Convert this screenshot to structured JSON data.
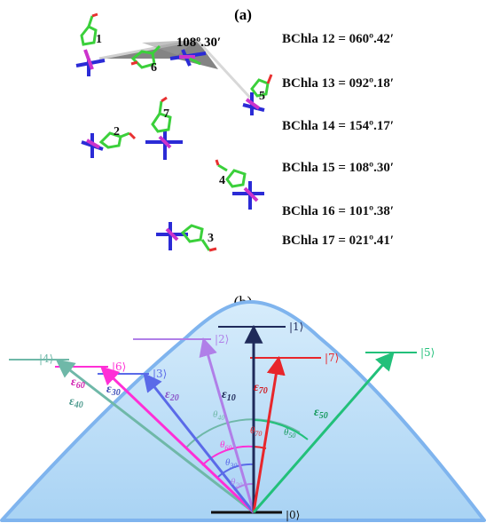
{
  "panel_a": {
    "label": "(a)",
    "highlight_angle": "108º.30′",
    "molecule_labels": [
      "1",
      "2",
      "3",
      "4",
      "5",
      "6",
      "7"
    ],
    "angle_rows": [
      {
        "name": "BChla 12",
        "value": "060º.42′"
      },
      {
        "name": "BChla 13",
        "value": "092º.18′"
      },
      {
        "name": "BChla 14",
        "value": "154º.17′"
      },
      {
        "name": "BChla 15",
        "value": "108º.30′"
      },
      {
        "name": "BChla 16",
        "value": "101º.38′"
      },
      {
        "name": "BChla 17",
        "value": "021º.41′"
      }
    ]
  },
  "panel_b": {
    "label": "(b)",
    "ground_state": "|0⟩",
    "states": [
      {
        "label": "|1⟩",
        "color": "#1f2a5a"
      },
      {
        "label": "|2⟩",
        "color": "#b07fe8"
      },
      {
        "label": "|3⟩",
        "color": "#5a6ae8"
      },
      {
        "label": "|4⟩",
        "color": "#6fb8a8"
      },
      {
        "label": "|5⟩",
        "color": "#22c07a"
      },
      {
        "label": "|6⟩",
        "color": "#ff2fd6"
      },
      {
        "label": "|7⟩",
        "color": "#e8262b"
      }
    ],
    "vectors": [
      {
        "label": "ε10",
        "base": "ε",
        "sub": "10",
        "color": "#1f2a5a"
      },
      {
        "label": "ε20",
        "base": "ε",
        "sub": "20",
        "color": "#8a56c8"
      },
      {
        "label": "ε30",
        "base": "ε",
        "sub": "30",
        "color": "#3f4fb8"
      },
      {
        "label": "ε40",
        "base": "ε",
        "sub": "40",
        "color": "#4f9b8f"
      },
      {
        "label": "ε50",
        "base": "ε",
        "sub": "50",
        "color": "#179a5e"
      },
      {
        "label": "ε60",
        "base": "ε",
        "sub": "60",
        "color": "#d020b0"
      },
      {
        "label": "ε70",
        "base": "ε",
        "sub": "70",
        "color": "#d11b22"
      }
    ],
    "angles": [
      {
        "label": "θ70",
        "base": "θ",
        "sub": "70",
        "color": "#e8262b"
      },
      {
        "label": "θ50",
        "base": "θ",
        "sub": "50",
        "color": "#179a5e"
      },
      {
        "label": "θ40",
        "base": "θ",
        "sub": "40",
        "color": "#6fb8a8"
      },
      {
        "label": "θ60",
        "base": "θ",
        "sub": "60",
        "color": "#ff2fd6"
      },
      {
        "label": "θ30",
        "base": "θ",
        "sub": "30",
        "color": "#5a6ae8"
      },
      {
        "label": "θ20",
        "base": "θ",
        "sub": "20",
        "color": "#b07fe8"
      }
    ]
  }
}
